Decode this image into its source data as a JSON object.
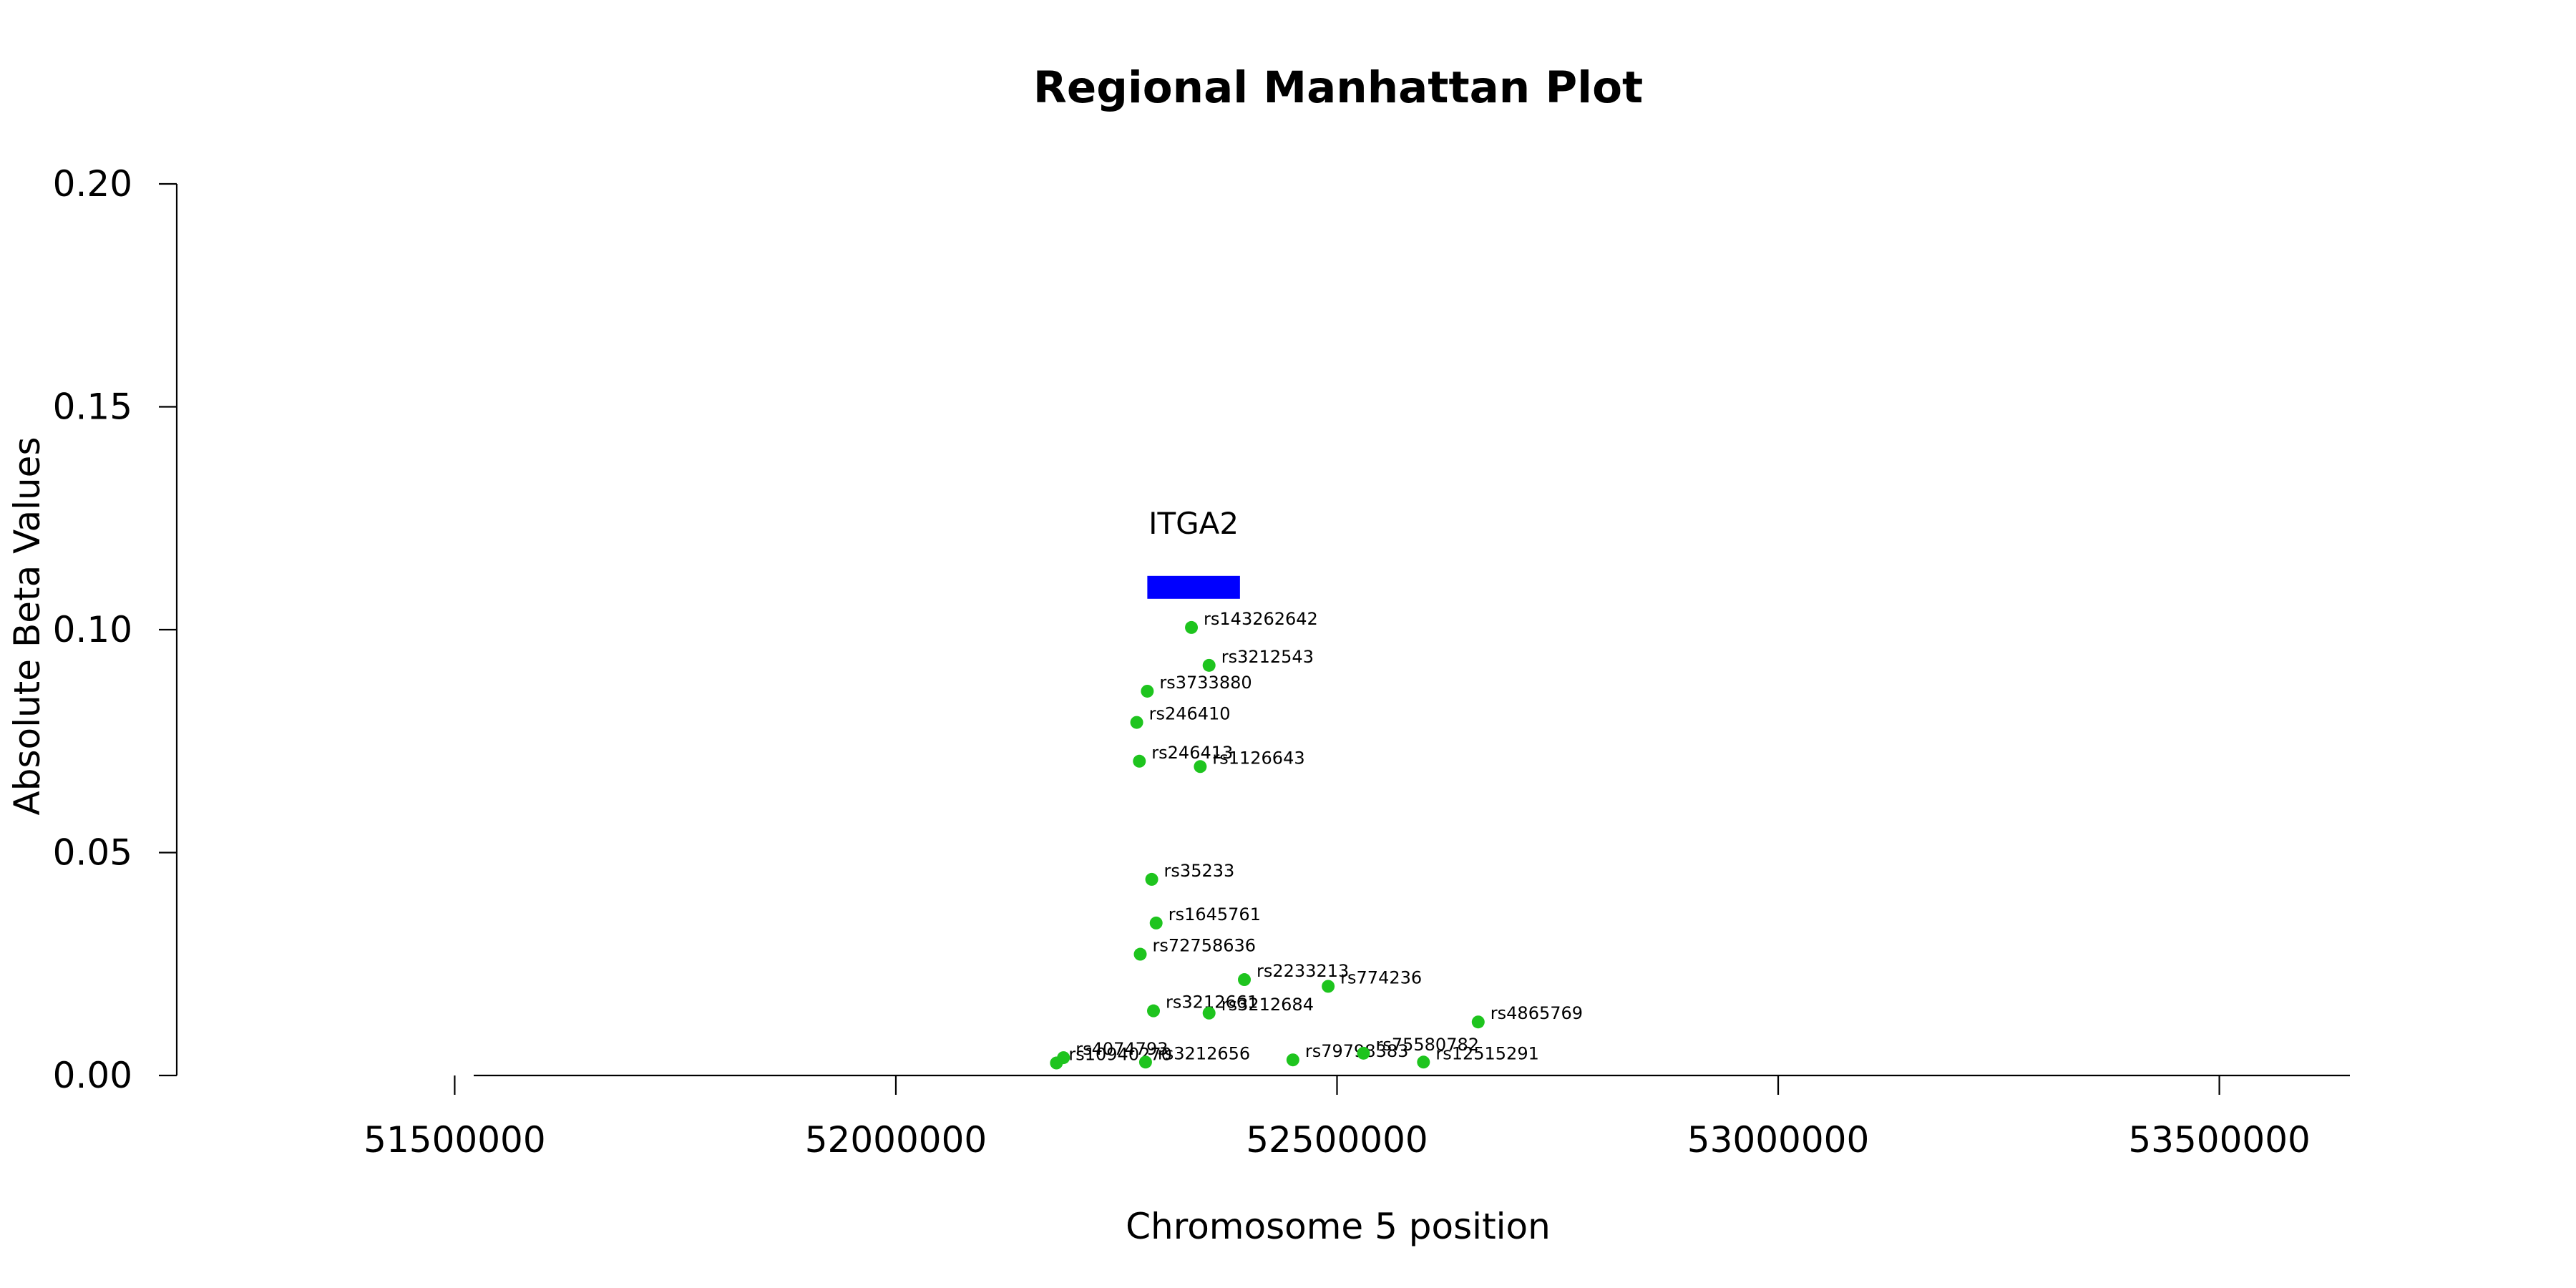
{
  "chart_data": {
    "type": "scatter",
    "title": "Regional Manhattan Plot",
    "xlabel": "Chromosome 5 position",
    "ylabel": "Absolute Beta Values",
    "xlim": [
      51185000,
      53815000
    ],
    "ylim": [
      0,
      0.2
    ],
    "x_ticks": [
      51500000,
      52000000,
      52500000,
      53000000,
      53500000
    ],
    "y_ticks": [
      0.0,
      0.05,
      0.1,
      0.15,
      0.2
    ],
    "x_tick_labels": [
      "51500000",
      "52000000",
      "52500000",
      "53000000",
      "53500000"
    ],
    "y_tick_labels": [
      "0.00",
      "0.05",
      "0.10",
      "0.15",
      "0.20"
    ],
    "grid": false,
    "point_color": "#1ec41e",
    "gene": {
      "name": "ITGA2",
      "start": 52285000,
      "end": 52390000,
      "y": 0.1095,
      "color": "#0000ff"
    },
    "points": [
      {
        "snp": "rs143262642",
        "x": 52335000,
        "y": 0.1005
      },
      {
        "snp": "rs3212543",
        "x": 52355000,
        "y": 0.092
      },
      {
        "snp": "rs3733880",
        "x": 52285000,
        "y": 0.0862
      },
      {
        "snp": "rs246410",
        "x": 52273000,
        "y": 0.0792
      },
      {
        "snp": "rs246413",
        "x": 52276000,
        "y": 0.0705
      },
      {
        "snp": "rs1126643",
        "x": 52345000,
        "y": 0.0693
      },
      {
        "snp": "rs35233",
        "x": 52290000,
        "y": 0.044
      },
      {
        "snp": "rs1645761",
        "x": 52295000,
        "y": 0.0342
      },
      {
        "snp": "rs72758636",
        "x": 52277000,
        "y": 0.0272
      },
      {
        "snp": "rs2233213",
        "x": 52395000,
        "y": 0.0215
      },
      {
        "snp": "rs774236",
        "x": 52490000,
        "y": 0.02
      },
      {
        "snp": "rs3212661",
        "x": 52292000,
        "y": 0.0145
      },
      {
        "snp": "rs3212684",
        "x": 52355000,
        "y": 0.014
      },
      {
        "snp": "rs4865769",
        "x": 52660000,
        "y": 0.012
      },
      {
        "snp": "rs4074793",
        "x": 52190000,
        "y": 0.004
      },
      {
        "snp": "rs10940270",
        "x": 52182000,
        "y": 0.0028
      },
      {
        "snp": "rs3212656",
        "x": 52283000,
        "y": 0.003
      },
      {
        "snp": "rs79798383",
        "x": 52450000,
        "y": 0.0035
      },
      {
        "snp": "rs75580782",
        "x": 52530000,
        "y": 0.005
      },
      {
        "snp": "rs12515291",
        "x": 52598000,
        "y": 0.003
      }
    ]
  }
}
